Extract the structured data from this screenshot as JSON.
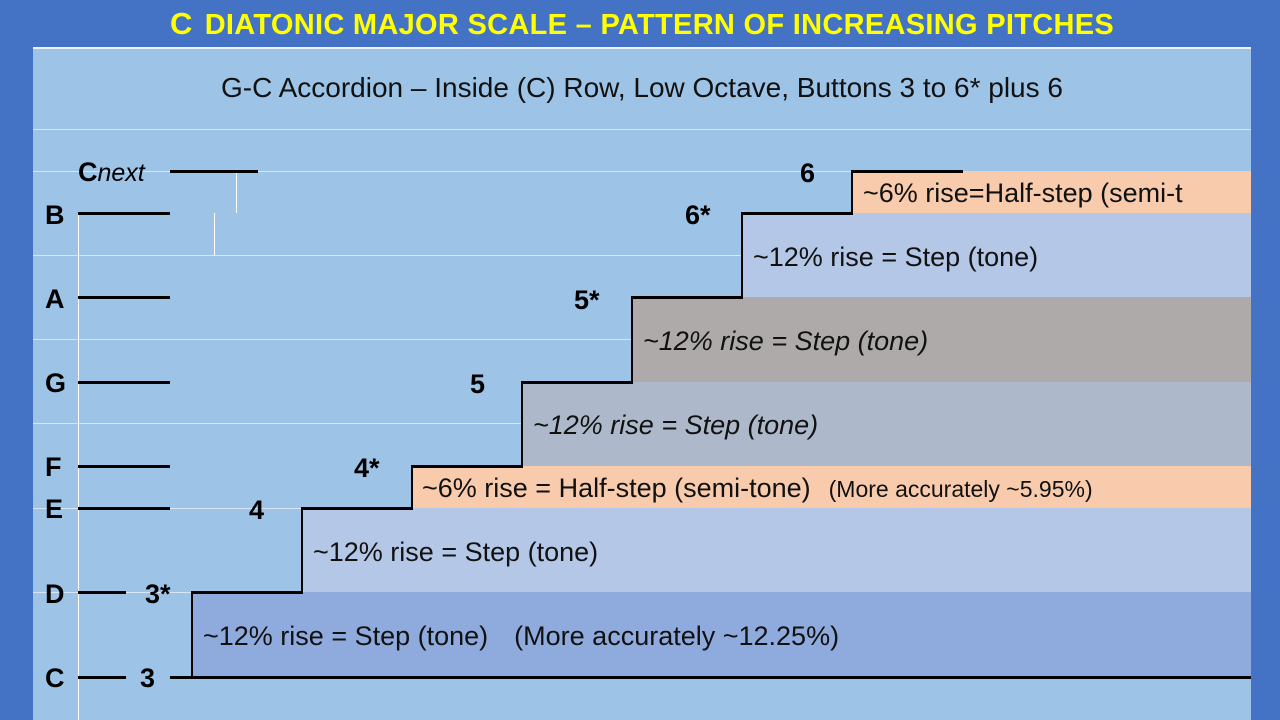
{
  "title": {
    "lead": "C",
    "rest": "DIATONIC MAJOR SCALE – PATTERN OF INCREASING PITCHES"
  },
  "subtitle": "G-C Accordion – Inside (C) Row, Low Octave, Buttons 3 to 6* plus 6",
  "notes": {
    "cnext_main": "C",
    "cnext_sub": "next",
    "B": "B",
    "A": "A",
    "G": "G",
    "F": "F",
    "E": "E",
    "D": "D",
    "C": "C"
  },
  "buttons": {
    "b3": "3",
    "b3s": "3*",
    "b4": "4",
    "b4s": "4*",
    "b5": "5",
    "b5s": "5*",
    "b6s": "6*",
    "b6": "6"
  },
  "steps": {
    "c_d_main": "~12% rise = Step  (tone)",
    "c_d_extra": "(More accurately ~12.25%)",
    "d_e": "~12% rise = Step  (tone)",
    "e_f_main": "~6% rise = Half-step (semi-tone)",
    "e_f_extra": "(More accurately ~5.95%)",
    "f_g": "~12% rise = Step  (tone)",
    "g_a": "~12% rise = Step  (tone)",
    "a_b": "~12% rise = Step  (tone)",
    "b_c": "~6% rise=Half-step (semi-t"
  },
  "colors": {
    "background": "#4472c4",
    "panel": "#9dc3e6",
    "title_text": "#ffff00",
    "tone_box_dark": "#8faadc",
    "tone_box_light": "#b4c7e7",
    "tone_box_gray": "#adb9ca",
    "tone_box_taupe": "#aeaaaa",
    "semitone_box": "#f8cbad"
  }
}
